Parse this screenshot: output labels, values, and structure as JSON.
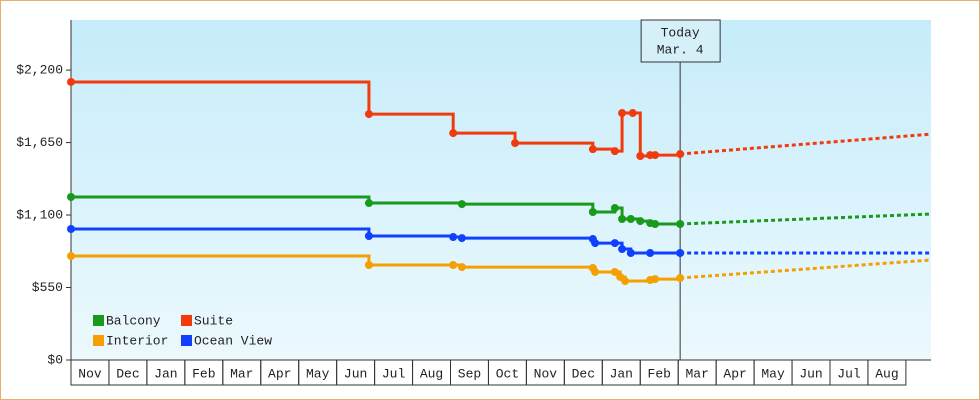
{
  "chart_data": {
    "type": "step-line",
    "annotation": {
      "label": [
        "Today",
        "Mar. 4"
      ],
      "x": 16.05
    },
    "categories": [
      "Nov",
      "Dec",
      "Jan",
      "Feb",
      "Mar",
      "Apr",
      "May",
      "Jun",
      "Jul",
      "Aug",
      "Sep",
      "Oct",
      "Nov",
      "Dec",
      "Jan",
      "Feb",
      "Mar",
      "Apr",
      "May",
      "Jun",
      "Jul",
      "Aug"
    ],
    "xlim": [
      0,
      22.66
    ],
    "ylim": [
      0,
      2580
    ],
    "yticks": [
      {
        "value": 0,
        "label": "$0"
      },
      {
        "value": 550,
        "label": "$550"
      },
      {
        "value": 1100,
        "label": "$1,100"
      },
      {
        "value": 1650,
        "label": "$1,650"
      },
      {
        "value": 2200,
        "label": "$2,200"
      }
    ],
    "series": [
      {
        "name": "Balcony",
        "color": "#1a9a1a",
        "x": [
          0,
          7.85,
          10.3,
          13.75,
          14.33,
          14.52,
          14.75,
          15.0,
          15.26,
          15.39,
          16.05
        ],
        "values": [
          1237,
          1191,
          1183,
          1123,
          1153,
          1070,
          1070,
          1054,
          1039,
          1032,
          1032
        ],
        "projection": {
          "x": [
            16.05,
            22.66
          ],
          "values": [
            1032,
            1108
          ]
        }
      },
      {
        "name": "Suite",
        "color": "#f03c0c",
        "x": [
          0,
          7.85,
          10.07,
          11.7,
          13.75,
          14.33,
          14.52,
          14.8,
          15.0,
          15.26,
          15.39,
          16.05
        ],
        "values": [
          2110,
          1866,
          1722,
          1646,
          1600,
          1585,
          1874,
          1874,
          1548,
          1555,
          1555,
          1563
        ],
        "projection": {
          "x": [
            16.05,
            22.66
          ],
          "values": [
            1563,
            1714
          ]
        }
      },
      {
        "name": "Interior",
        "color": "#f5a000",
        "x": [
          0,
          7.85,
          10.07,
          10.3,
          13.75,
          13.81,
          14.33,
          14.47,
          14.6,
          15.26,
          15.39,
          16.05
        ],
        "values": [
          789,
          721,
          721,
          705,
          698,
          668,
          668,
          630,
          599,
          607,
          614,
          622
        ],
        "projection": {
          "x": [
            16.05,
            22.66
          ],
          "values": [
            622,
            759
          ]
        }
      },
      {
        "name": "Ocean View",
        "color": "#1040ff",
        "x": [
          0,
          7.85,
          10.07,
          10.3,
          13.75,
          13.81,
          14.33,
          14.52,
          14.75,
          15.26,
          16.05
        ],
        "values": [
          994,
          941,
          933,
          925,
          918,
          887,
          887,
          842,
          812,
          812,
          812
        ],
        "projection": {
          "x": [
            16.05,
            22.66
          ],
          "values": [
            812,
            812
          ]
        }
      }
    ]
  }
}
